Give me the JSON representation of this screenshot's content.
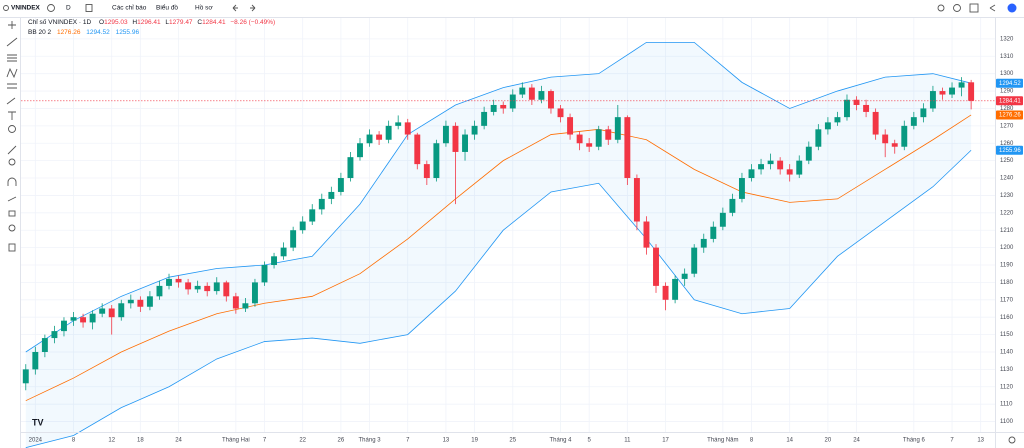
{
  "toolbar": {
    "symbol": "VNINDEX",
    "interval": "D",
    "indicators": "Các chỉ báo",
    "chart": "Biểu đồ",
    "profile": "Hồ sơ"
  },
  "chart_data": {
    "type": "candlestick",
    "title": "Chỉ số VNINDEX · 1D",
    "ohlc_labels": [
      "O",
      "H",
      "L",
      "C"
    ],
    "change": "−8.26 (−0.49%)",
    "open": [
      1122,
      1130,
      1140,
      1148,
      1152,
      1158,
      1160,
      1157,
      1162,
      1165,
      1160,
      1168,
      1170,
      1166,
      1172,
      1178,
      1182,
      1180,
      1176,
      1178,
      1175,
      1180,
      1172,
      1165,
      1168,
      1180,
      1190,
      1195,
      1200,
      1210,
      1215,
      1222,
      1228,
      1232,
      1240,
      1252,
      1260,
      1265,
      1262,
      1270,
      1272,
      1265,
      1248,
      1240,
      1260,
      1270,
      1255,
      1265,
      1270,
      1278,
      1282,
      1280,
      1288,
      1292,
      1285,
      1290,
      1280,
      1275,
      1265,
      1260,
      1258,
      1268,
      1262,
      1275,
      1240,
      1215,
      1200,
      1178,
      1170,
      1182,
      1185,
      1200,
      1205,
      1212,
      1220,
      1228,
      1240,
      1245,
      1248,
      1250,
      1245,
      1242,
      1250,
      1258,
      1268,
      1272,
      1275,
      1285,
      1282,
      1278,
      1265,
      1260,
      1258,
      1270,
      1275,
      1280,
      1290,
      1288,
      1292,
      1295.03
    ],
    "high": [
      1133,
      1143,
      1150,
      1155,
      1160,
      1163,
      1162,
      1164,
      1168,
      1167,
      1170,
      1173,
      1172,
      1175,
      1181,
      1185,
      1184,
      1182,
      1181,
      1180,
      1183,
      1181,
      1174,
      1171,
      1182,
      1192,
      1197,
      1203,
      1212,
      1218,
      1225,
      1231,
      1235,
      1243,
      1255,
      1263,
      1268,
      1267,
      1273,
      1276,
      1274,
      1266,
      1250,
      1262,
      1273,
      1272,
      1268,
      1273,
      1281,
      1285,
      1284,
      1291,
      1295,
      1294,
      1293,
      1291,
      1282,
      1277,
      1267,
      1263,
      1270,
      1270,
      1282,
      1276,
      1242,
      1218,
      1202,
      1180,
      1184,
      1188,
      1202,
      1208,
      1215,
      1223,
      1231,
      1243,
      1248,
      1251,
      1254,
      1252,
      1248,
      1253,
      1261,
      1271,
      1275,
      1278,
      1288,
      1287,
      1285,
      1280,
      1268,
      1262,
      1273,
      1278,
      1283,
      1293,
      1292,
      1295,
      1298,
      1296.41
    ],
    "low": [
      1118,
      1127,
      1137,
      1145,
      1149,
      1155,
      1154,
      1153,
      1160,
      1150,
      1158,
      1165,
      1163,
      1164,
      1170,
      1176,
      1177,
      1173,
      1174,
      1172,
      1173,
      1169,
      1162,
      1163,
      1166,
      1178,
      1188,
      1193,
      1198,
      1208,
      1213,
      1219,
      1225,
      1230,
      1238,
      1250,
      1258,
      1259,
      1260,
      1268,
      1262,
      1245,
      1236,
      1238,
      1258,
      1225,
      1250,
      1262,
      1268,
      1276,
      1277,
      1278,
      1286,
      1282,
      1283,
      1277,
      1272,
      1262,
      1256,
      1255,
      1256,
      1259,
      1260,
      1236,
      1210,
      1196,
      1174,
      1164,
      1168,
      1178,
      1183,
      1197,
      1203,
      1210,
      1218,
      1226,
      1238,
      1242,
      1245,
      1242,
      1238,
      1240,
      1248,
      1256,
      1265,
      1270,
      1273,
      1279,
      1275,
      1262,
      1252,
      1254,
      1256,
      1268,
      1272,
      1278,
      1285,
      1286,
      1287,
      1279.47
    ],
    "close": [
      1130,
      1140,
      1148,
      1152,
      1158,
      1160,
      1157,
      1162,
      1165,
      1160,
      1168,
      1170,
      1166,
      1172,
      1178,
      1182,
      1180,
      1176,
      1178,
      1175,
      1180,
      1172,
      1165,
      1168,
      1180,
      1190,
      1195,
      1200,
      1210,
      1215,
      1222,
      1228,
      1232,
      1240,
      1252,
      1260,
      1265,
      1262,
      1270,
      1272,
      1265,
      1248,
      1240,
      1260,
      1270,
      1255,
      1265,
      1270,
      1278,
      1282,
      1280,
      1288,
      1292,
      1285,
      1290,
      1280,
      1275,
      1265,
      1260,
      1258,
      1268,
      1262,
      1275,
      1240,
      1215,
      1200,
      1178,
      1170,
      1182,
      1185,
      1200,
      1205,
      1212,
      1220,
      1228,
      1240,
      1245,
      1248,
      1250,
      1245,
      1242,
      1250,
      1258,
      1268,
      1272,
      1275,
      1285,
      1282,
      1278,
      1265,
      1260,
      1258,
      1270,
      1275,
      1280,
      1290,
      1288,
      1292,
      1295,
      1284.41
    ],
    "up_color": "#089981",
    "down_color": "#f23645",
    "xlim": [
      -0.5,
      101.5
    ],
    "xticks": [
      {
        "value": 1,
        "label": "2024"
      },
      {
        "value": 5,
        "label": "8"
      },
      {
        "value": 9,
        "label": "12"
      },
      {
        "value": 12,
        "label": "18"
      },
      {
        "value": 16,
        "label": "24"
      },
      {
        "value": 22,
        "label": "Tháng Hai"
      },
      {
        "value": 25,
        "label": "7"
      },
      {
        "value": 29,
        "label": "22"
      },
      {
        "value": 33,
        "label": "26"
      },
      {
        "value": 36,
        "label": "Tháng 3"
      },
      {
        "value": 40,
        "label": "7"
      },
      {
        "value": 44,
        "label": "13"
      },
      {
        "value": 47,
        "label": "19"
      },
      {
        "value": 51,
        "label": "25"
      },
      {
        "value": 56,
        "label": "Tháng 4"
      },
      {
        "value": 59,
        "label": "5"
      },
      {
        "value": 63,
        "label": "11"
      },
      {
        "value": 67,
        "label": "17"
      },
      {
        "value": 73,
        "label": "Tháng Năm"
      },
      {
        "value": 76,
        "label": "8"
      },
      {
        "value": 80,
        "label": "14"
      },
      {
        "value": 84,
        "label": "20"
      },
      {
        "value": 87,
        "label": "24"
      },
      {
        "value": 93,
        "label": "Tháng 6"
      },
      {
        "value": 97,
        "label": "7"
      },
      {
        "value": 100,
        "label": "13"
      }
    ],
    "ylim": [
      1094,
      1332
    ],
    "yticks": [
      1100,
      1110,
      1120,
      1130,
      1140,
      1150,
      1160,
      1170,
      1180,
      1190,
      1200,
      1210,
      1220,
      1230,
      1240,
      1250,
      1260,
      1270,
      1280,
      1290,
      1300,
      1310,
      1320
    ],
    "grid": true,
    "bollinger": {
      "name": "BB 20 2",
      "color": "#2196f3",
      "middle_color": "#ff6d00",
      "x": [
        0,
        5,
        10,
        15,
        20,
        25,
        30,
        35,
        40,
        45,
        50,
        55,
        60,
        65,
        70,
        75,
        80,
        85,
        90,
        95,
        99
      ],
      "middle": [
        1112,
        1125,
        1140,
        1152,
        1162,
        1168,
        1172,
        1185,
        1205,
        1228,
        1250,
        1265,
        1268,
        1262,
        1245,
        1232,
        1226,
        1228,
        1245,
        1262,
        1276.26
      ],
      "upper": [
        1140,
        1158,
        1172,
        1183,
        1188,
        1190,
        1195,
        1225,
        1265,
        1282,
        1292,
        1298,
        1300,
        1318,
        1318,
        1295,
        1280,
        1290,
        1298,
        1300,
        1294.52
      ],
      "lower": [
        1085,
        1092,
        1108,
        1120,
        1136,
        1146,
        1148,
        1145,
        1150,
        1175,
        1210,
        1232,
        1237,
        1205,
        1170,
        1162,
        1165,
        1195,
        1215,
        1235,
        1255.96
      ]
    }
  }
}
